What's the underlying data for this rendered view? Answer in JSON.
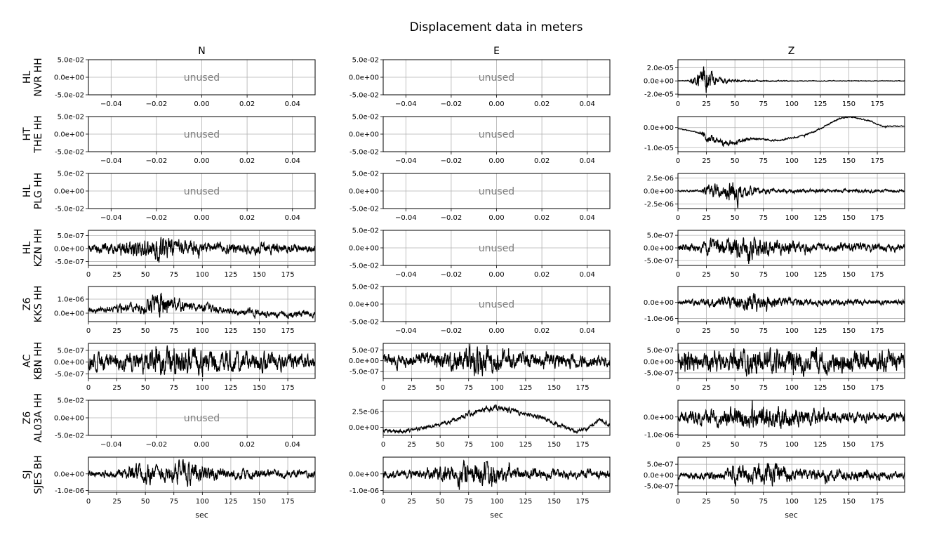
{
  "figure_title": "Displacement data in meters",
  "columns": [
    "N",
    "E",
    "Z"
  ],
  "rows": [
    {
      "label1": "HL",
      "label2": "NVR HH"
    },
    {
      "label1": "HT",
      "label2": "THE HH"
    },
    {
      "label1": "HL",
      "label2": "PLG HH"
    },
    {
      "label1": "HL",
      "label2": "KZN HH"
    },
    {
      "label1": "Z6",
      "label2": "KKS HH"
    },
    {
      "label1": "AC",
      "label2": "KBN HH"
    },
    {
      "label1": "Z6",
      "label2": "AL03A HH"
    },
    {
      "label1": "SJ",
      "label2": "SJES BH"
    }
  ],
  "unused_text": "unused",
  "xlabel": "sec",
  "colors": {
    "trace": "#000000",
    "grid": "#b0b0b0",
    "unused": "#808080"
  },
  "chart_data": {
    "type": "line",
    "title": "Displacement data in meters",
    "xlabel": "sec",
    "grid": true,
    "time_xlim": [
      0,
      199
    ],
    "time_xticks": [
      0,
      25,
      50,
      75,
      100,
      125,
      150,
      175
    ],
    "time_xtick_labels": [
      "0",
      "25",
      "50",
      "75",
      "100",
      "125",
      "150",
      "175"
    ],
    "unused_xlim": [
      -0.05,
      0.05
    ],
    "unused_xticks": [
      -0.04,
      -0.02,
      0,
      0.02,
      0.04
    ],
    "unused_xtick_labels": [
      "−0.04",
      "−0.02",
      "0.00",
      "0.02",
      "0.04"
    ],
    "unused_ylim": [
      -0.05,
      0.05
    ],
    "unused_yticks": [
      -0.05,
      0,
      0.05
    ],
    "unused_ytick_labels": [
      "-5.0e-02",
      "0.0e+00",
      "5.0e-02"
    ],
    "panels": [
      {
        "row": 0,
        "col": "N",
        "unused": true
      },
      {
        "row": 0,
        "col": "E",
        "unused": true
      },
      {
        "row": 0,
        "col": "Z",
        "unused": false,
        "ylim": [
          -2.1e-05,
          3.2e-05
        ],
        "yticks": [
          -2e-05,
          0,
          2e-05
        ],
        "ytick_labels": [
          "-2.0e-05",
          "0.0e+00",
          "2.0e-05"
        ],
        "envelope": [
          [
            0,
            5e-07
          ],
          [
            10,
            1e-06
          ],
          [
            12,
            6e-06
          ],
          [
            18,
            1.2e-05
          ],
          [
            22,
            1.8e-05
          ],
          [
            25,
            2.6e-05
          ],
          [
            28,
            1.4e-05
          ],
          [
            35,
            5e-06
          ],
          [
            45,
            2.5e-06
          ],
          [
            60,
            1.5e-06
          ],
          [
            100,
            7e-07
          ],
          [
            199,
            5e-07
          ]
        ]
      },
      {
        "row": 1,
        "col": "N",
        "unused": true
      },
      {
        "row": 1,
        "col": "E",
        "unused": true
      },
      {
        "row": 1,
        "col": "Z",
        "unused": false,
        "ylim": [
          -1.2e-05,
          5.5e-06
        ],
        "yticks": [
          -1e-05,
          0
        ],
        "ytick_labels": [
          "-1.0e-05",
          "0.0e+00"
        ],
        "trend": [
          [
            0,
            -5e-07
          ],
          [
            10,
            -1.5e-06
          ],
          [
            20,
            -3e-06
          ],
          [
            30,
            -6e-06
          ],
          [
            40,
            -8e-06
          ],
          [
            50,
            -7.5e-06
          ],
          [
            60,
            -6e-06
          ],
          [
            70,
            -5.5e-06
          ],
          [
            80,
            -6e-06
          ],
          [
            90,
            -6.5e-06
          ],
          [
            100,
            -5e-06
          ],
          [
            110,
            -4e-06
          ],
          [
            120,
            -2e-06
          ],
          [
            130,
            1e-06
          ],
          [
            140,
            4e-06
          ],
          [
            150,
            5.5e-06
          ],
          [
            160,
            4.5e-06
          ],
          [
            170,
            3e-06
          ],
          [
            180,
            5e-07
          ],
          [
            190,
            8e-07
          ],
          [
            199,
            5e-07
          ]
        ],
        "envelope": [
          [
            0,
            2e-07
          ],
          [
            18,
            3e-07
          ],
          [
            22,
            2e-06
          ],
          [
            28,
            2.5e-06
          ],
          [
            35,
            1.5e-06
          ],
          [
            45,
            1.8e-06
          ],
          [
            55,
            1e-06
          ],
          [
            70,
            5e-07
          ],
          [
            199,
            3e-07
          ]
        ]
      },
      {
        "row": 2,
        "col": "N",
        "unused": true
      },
      {
        "row": 2,
        "col": "E",
        "unused": true
      },
      {
        "row": 2,
        "col": "Z",
        "unused": false,
        "ylim": [
          -3.4e-06,
          3.4e-06
        ],
        "yticks": [
          -2.5e-06,
          0,
          2.5e-06
        ],
        "ytick_labels": [
          "-2.5e-06",
          "0.0e+00",
          "2.5e-06"
        ],
        "envelope": [
          [
            0,
            1.5e-07
          ],
          [
            20,
            2.5e-07
          ],
          [
            25,
            1.2e-06
          ],
          [
            32,
            1.5e-06
          ],
          [
            40,
            1.1e-06
          ],
          [
            47,
            2.1e-06
          ],
          [
            51,
            3.1e-06
          ],
          [
            56,
            1.3e-06
          ],
          [
            70,
            6e-07
          ],
          [
            90,
            4e-07
          ],
          [
            199,
            2.5e-07
          ]
        ]
      },
      {
        "row": 3,
        "col": "N",
        "unused": false,
        "ylim": [
          -6.5e-07,
          7e-07
        ],
        "yticks": [
          -5e-07,
          0,
          5e-07
        ],
        "ytick_labels": [
          "-5.0e-07",
          "0.0e+00",
          "5.0e-07"
        ],
        "envelope": [
          [
            0,
            1.8e-07
          ],
          [
            25,
            2.2e-07
          ],
          [
            35,
            3.3e-07
          ],
          [
            55,
            4.6e-07
          ],
          [
            63,
            6.5e-07
          ],
          [
            70,
            4e-07
          ],
          [
            85,
            2.8e-07
          ],
          [
            120,
            2e-07
          ],
          [
            160,
            2e-07
          ],
          [
            199,
            1.6e-07
          ]
        ]
      },
      {
        "row": 3,
        "col": "E",
        "unused": true
      },
      {
        "row": 3,
        "col": "Z",
        "unused": false,
        "ylim": [
          -7e-07,
          7e-07
        ],
        "yticks": [
          -5e-07,
          0,
          5e-07
        ],
        "ytick_labels": [
          "-5.0e-07",
          "0.0e+00",
          "5.0e-07"
        ],
        "envelope": [
          [
            0,
            1.6e-07
          ],
          [
            20,
            2e-07
          ],
          [
            30,
            3.6e-07
          ],
          [
            50,
            4e-07
          ],
          [
            63,
            6.5e-07
          ],
          [
            70,
            4e-07
          ],
          [
            85,
            2.7e-07
          ],
          [
            120,
            2e-07
          ],
          [
            199,
            1.5e-07
          ]
        ]
      },
      {
        "row": 4,
        "col": "N",
        "unused": false,
        "ylim": [
          -6e-07,
          1.9e-06
        ],
        "yticks": [
          0,
          1e-06
        ],
        "ytick_labels": [
          "0.0e+00",
          "1.0e-06"
        ],
        "trend": [
          [
            0,
            1.5e-07
          ],
          [
            30,
            4e-07
          ],
          [
            50,
            5e-07
          ],
          [
            70,
            6e-07
          ],
          [
            90,
            5e-07
          ],
          [
            110,
            3e-07
          ],
          [
            130,
            1e-07
          ],
          [
            150,
            -5e-08
          ],
          [
            175,
            -1e-07
          ],
          [
            199,
            -5e-08
          ]
        ],
        "envelope": [
          [
            0,
            2.2e-07
          ],
          [
            40,
            3.5e-07
          ],
          [
            55,
            6e-07
          ],
          [
            63,
            1.2e-06
          ],
          [
            70,
            6e-07
          ],
          [
            90,
            3.5e-07
          ],
          [
            130,
            2.5e-07
          ],
          [
            199,
            2.2e-07
          ]
        ]
      },
      {
        "row": 4,
        "col": "E",
        "unused": true
      },
      {
        "row": 4,
        "col": "Z",
        "unused": false,
        "ylim": [
          -1.2e-06,
          1e-06
        ],
        "yticks": [
          -1e-06,
          0
        ],
        "ytick_labels": [
          "-1.0e-06",
          "0.0e+00"
        ],
        "envelope": [
          [
            0,
            1.5e-07
          ],
          [
            20,
            2e-07
          ],
          [
            40,
            3.5e-07
          ],
          [
            60,
            5e-07
          ],
          [
            65,
            8e-07
          ],
          [
            72,
            4.5e-07
          ],
          [
            90,
            3e-07
          ],
          [
            130,
            2e-07
          ],
          [
            199,
            1.5e-07
          ]
        ]
      },
      {
        "row": 5,
        "col": "N",
        "unused": false,
        "ylim": [
          -7e-07,
          8e-07
        ],
        "yticks": [
          -5e-07,
          0,
          5e-07
        ],
        "ytick_labels": [
          "-5.0e-07",
          "0.0e+00",
          "5.0e-07"
        ],
        "envelope": [
          [
            0,
            3.5e-07
          ],
          [
            40,
            4e-07
          ],
          [
            60,
            5.5e-07
          ],
          [
            80,
            6e-07
          ],
          [
            110,
            5e-07
          ],
          [
            150,
            4e-07
          ],
          [
            199,
            3.5e-07
          ]
        ]
      },
      {
        "row": 5,
        "col": "E",
        "unused": false,
        "ylim": [
          -8.2e-07,
          8e-07
        ],
        "yticks": [
          -5e-07,
          0,
          5e-07
        ],
        "ytick_labels": [
          "-5.0e-07",
          "0.0e+00",
          "5.0e-07"
        ],
        "envelope": [
          [
            0,
            3e-07
          ],
          [
            40,
            3.5e-07
          ],
          [
            60,
            4.5e-07
          ],
          [
            82,
            8e-07
          ],
          [
            95,
            5e-07
          ],
          [
            130,
            3.5e-07
          ],
          [
            199,
            3e-07
          ]
        ]
      },
      {
        "row": 5,
        "col": "Z",
        "unused": false,
        "ylim": [
          -7.5e-07,
          8e-07
        ],
        "yticks": [
          -5e-07,
          0,
          5e-07
        ],
        "ytick_labels": [
          "-5.0e-07",
          "0.0e+00",
          "5.0e-07"
        ],
        "envelope": [
          [
            0,
            4.5e-07
          ],
          [
            40,
            5e-07
          ],
          [
            70,
            6.5e-07
          ],
          [
            100,
            6e-07
          ],
          [
            150,
            5e-07
          ],
          [
            199,
            4.5e-07
          ]
        ]
      },
      {
        "row": 6,
        "col": "N",
        "unused": true
      },
      {
        "row": 6,
        "col": "E",
        "unused": false,
        "ylim": [
          -1.3e-06,
          4.3e-06
        ],
        "yticks": [
          0,
          2.5e-06
        ],
        "ytick_labels": [
          "0.0e+00",
          "2.5e-06"
        ],
        "trend": [
          [
            0,
            -5e-07
          ],
          [
            15,
            -7e-07
          ],
          [
            30,
            -3e-07
          ],
          [
            45,
            3e-07
          ],
          [
            60,
            1e-06
          ],
          [
            75,
            2.1e-06
          ],
          [
            90,
            2.9e-06
          ],
          [
            100,
            3.1e-06
          ],
          [
            110,
            2.7e-06
          ],
          [
            125,
            2.1e-06
          ],
          [
            140,
            1.5e-06
          ],
          [
            155,
            3e-07
          ],
          [
            170,
            -6e-07
          ],
          [
            180,
            -2e-07
          ],
          [
            190,
            1.2e-06
          ],
          [
            199,
            5e-07
          ]
        ],
        "envelope": [
          [
            0,
            3e-07
          ],
          [
            60,
            3.5e-07
          ],
          [
            95,
            5e-07
          ],
          [
            130,
            3.5e-07
          ],
          [
            199,
            3e-07
          ]
        ]
      },
      {
        "row": 6,
        "col": "Z",
        "unused": false,
        "ylim": [
          -1.05e-06,
          9.5e-07
        ],
        "yticks": [
          -1e-06,
          0
        ],
        "ytick_labels": [
          "-1.0e-06",
          "0.0e+00"
        ],
        "envelope": [
          [
            0,
            3e-07
          ],
          [
            20,
            4.5e-07
          ],
          [
            40,
            5.5e-07
          ],
          [
            60,
            7e-07
          ],
          [
            90,
            7e-07
          ],
          [
            110,
            5e-07
          ],
          [
            150,
            3e-07
          ],
          [
            199,
            2.5e-07
          ]
        ]
      },
      {
        "row": 7,
        "col": "N",
        "unused": false,
        "ylim": [
          -1.1e-06,
          1e-06
        ],
        "yticks": [
          -1e-06,
          0
        ],
        "ytick_labels": [
          "-1.0e-06",
          "0.0e+00"
        ],
        "envelope": [
          [
            0,
            2e-07
          ],
          [
            30,
            3e-07
          ],
          [
            52,
            8e-07
          ],
          [
            60,
            4e-07
          ],
          [
            85,
            8e-07
          ],
          [
            95,
            6e-07
          ],
          [
            120,
            3e-07
          ],
          [
            199,
            2e-07
          ]
        ]
      },
      {
        "row": 7,
        "col": "E",
        "unused": false,
        "ylim": [
          -1.1e-06,
          1e-06
        ],
        "yticks": [
          -1e-06,
          0
        ],
        "ytick_labels": [
          "-1.0e-06",
          "0.0e+00"
        ],
        "envelope": [
          [
            0,
            2.5e-07
          ],
          [
            30,
            3e-07
          ],
          [
            50,
            4.5e-07
          ],
          [
            65,
            6e-07
          ],
          [
            90,
            8e-07
          ],
          [
            110,
            5e-07
          ],
          [
            140,
            3e-07
          ],
          [
            199,
            2.5e-07
          ]
        ]
      },
      {
        "row": 7,
        "col": "Z",
        "unused": false,
        "ylim": [
          -8e-07,
          8.3e-07
        ],
        "yticks": [
          -5e-07,
          0,
          5e-07
        ],
        "ytick_labels": [
          "-5.0e-07",
          "0.0e+00",
          "5.0e-07"
        ],
        "envelope": [
          [
            0,
            1.6e-07
          ],
          [
            40,
            2e-07
          ],
          [
            50,
            4.5e-07
          ],
          [
            65,
            4e-07
          ],
          [
            85,
            6e-07
          ],
          [
            100,
            3e-07
          ],
          [
            199,
            1.8e-07
          ]
        ]
      }
    ]
  }
}
